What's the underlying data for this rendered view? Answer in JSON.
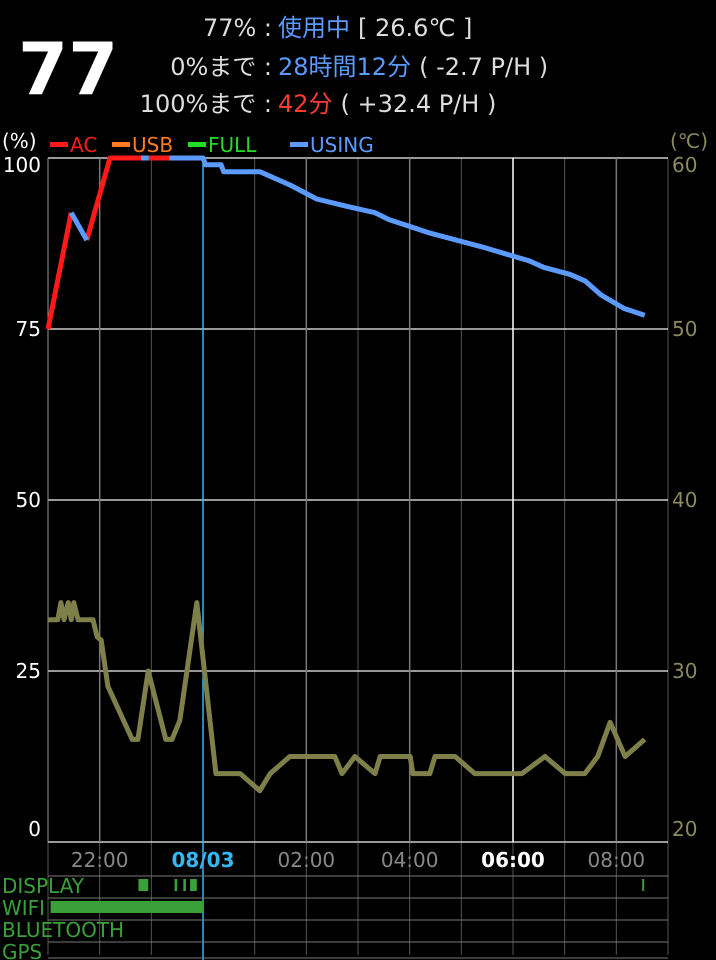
{
  "header": {
    "level": "77",
    "lines": [
      {
        "label": "77% :",
        "status": "使用中",
        "status_color": "#5b9bff",
        "detail": "[ 26.6℃ ]"
      },
      {
        "label": "0%まで :",
        "status": "28時間12分",
        "status_color": "#5b9bff",
        "detail": "( -2.7 P/H )"
      },
      {
        "label": "100%まで :",
        "status": "42分",
        "status_color": "#ff3b30",
        "detail": "( +32.4 P/H )"
      }
    ]
  },
  "chart_data": {
    "type": "line",
    "ylabel": "(%)",
    "y2label": "(℃)",
    "legend": [
      {
        "name": "AC",
        "color": "#ff1a1a"
      },
      {
        "name": "USB",
        "color": "#ff7a20"
      },
      {
        "name": "FULL",
        "color": "#22dd22"
      },
      {
        "name": "USING",
        "color": "#5b9bff"
      }
    ],
    "xlim": [
      21,
      33
    ],
    "xticks": [
      {
        "value": 22,
        "label": "22:00"
      },
      {
        "value": 24,
        "label": "08/03"
      },
      {
        "value": 26,
        "label": "02:00"
      },
      {
        "value": 28,
        "label": "04:00"
      },
      {
        "value": 30,
        "label": "06:00"
      },
      {
        "value": 32,
        "label": "08:00"
      }
    ],
    "xtick_colors": [
      "#888888",
      "#35b8f0",
      "#888888",
      "#888888",
      "#ffffff",
      "#888888"
    ],
    "ylim": [
      0,
      100
    ],
    "yticks": [
      0,
      25,
      50,
      75,
      100
    ],
    "y2lim": [
      20,
      60
    ],
    "y2ticks": [
      20,
      30,
      40,
      50,
      60
    ],
    "grid": true,
    "series": [
      {
        "name": "AC",
        "color": "#ff1a1a",
        "x": [
          21.0,
          21.45,
          21.6,
          21.75,
          22.2,
          22.8,
          22.9,
          22.95,
          23.35
        ],
        "values": [
          75,
          92,
          null,
          88,
          100,
          100,
          null,
          100,
          100
        ]
      },
      {
        "name": "USING",
        "color": "#5b9bff",
        "x": [
          21.45,
          21.75,
          21.9,
          22.8,
          22.95,
          23.1,
          23.35,
          24.0,
          24.05,
          24.35,
          24.4,
          25.1,
          25.7,
          26.2,
          26.75,
          27.33,
          27.6,
          28.0,
          28.4,
          28.9,
          29.4,
          29.85,
          30.3,
          30.6,
          31.1,
          31.4,
          31.7,
          32.15,
          32.55
        ],
        "values": [
          92,
          88,
          null,
          100,
          100,
          null,
          100,
          100,
          99,
          99,
          98,
          98,
          96,
          94,
          93,
          92,
          91,
          90,
          89,
          88,
          87,
          86,
          85,
          84,
          83,
          82,
          80,
          78,
          77
        ]
      },
      {
        "name": "TEMP",
        "color": "#7f7f4a",
        "axis": "y2",
        "x": [
          21.0,
          21.19,
          21.25,
          21.31,
          21.39,
          21.45,
          21.5,
          21.58,
          21.87,
          21.95,
          22.03,
          22.16,
          22.63,
          22.74,
          22.94,
          23.28,
          23.4,
          23.55,
          23.88,
          24.25,
          24.72,
          25.1,
          25.3,
          25.68,
          26.55,
          26.69,
          26.94,
          27.33,
          27.43,
          28.01,
          28.06,
          28.39,
          28.49,
          28.88,
          29.26,
          30.17,
          30.62,
          31.01,
          31.39,
          31.64,
          31.88,
          32.17,
          32.55
        ],
        "values": [
          33,
          33,
          34,
          33,
          34,
          33,
          34,
          33,
          33,
          32,
          31.8,
          29.1,
          26,
          26,
          30,
          26,
          26,
          27.1,
          34,
          24,
          24,
          23,
          24,
          25,
          25,
          24,
          25,
          24,
          25,
          25,
          24,
          24,
          25,
          25,
          24,
          24,
          25,
          24,
          24,
          25,
          27,
          25,
          26
        ]
      }
    ],
    "status_rows": [
      {
        "name": "DISPLAY",
        "color": "#3aa03a",
        "intervals": [
          [
            22.75,
            22.94
          ],
          [
            23.45,
            23.5
          ],
          [
            23.62,
            23.67
          ],
          [
            23.75,
            23.88
          ],
          [
            32.5,
            32.53
          ]
        ]
      },
      {
        "name": "WIFI",
        "color": "#3aa03a",
        "intervals": [
          [
            21.05,
            24.0
          ]
        ]
      },
      {
        "name": "BLUETOOTH",
        "color": "#3aa03a",
        "intervals": []
      },
      {
        "name": "GPS",
        "color": "#3aa03a",
        "intervals": []
      }
    ]
  }
}
